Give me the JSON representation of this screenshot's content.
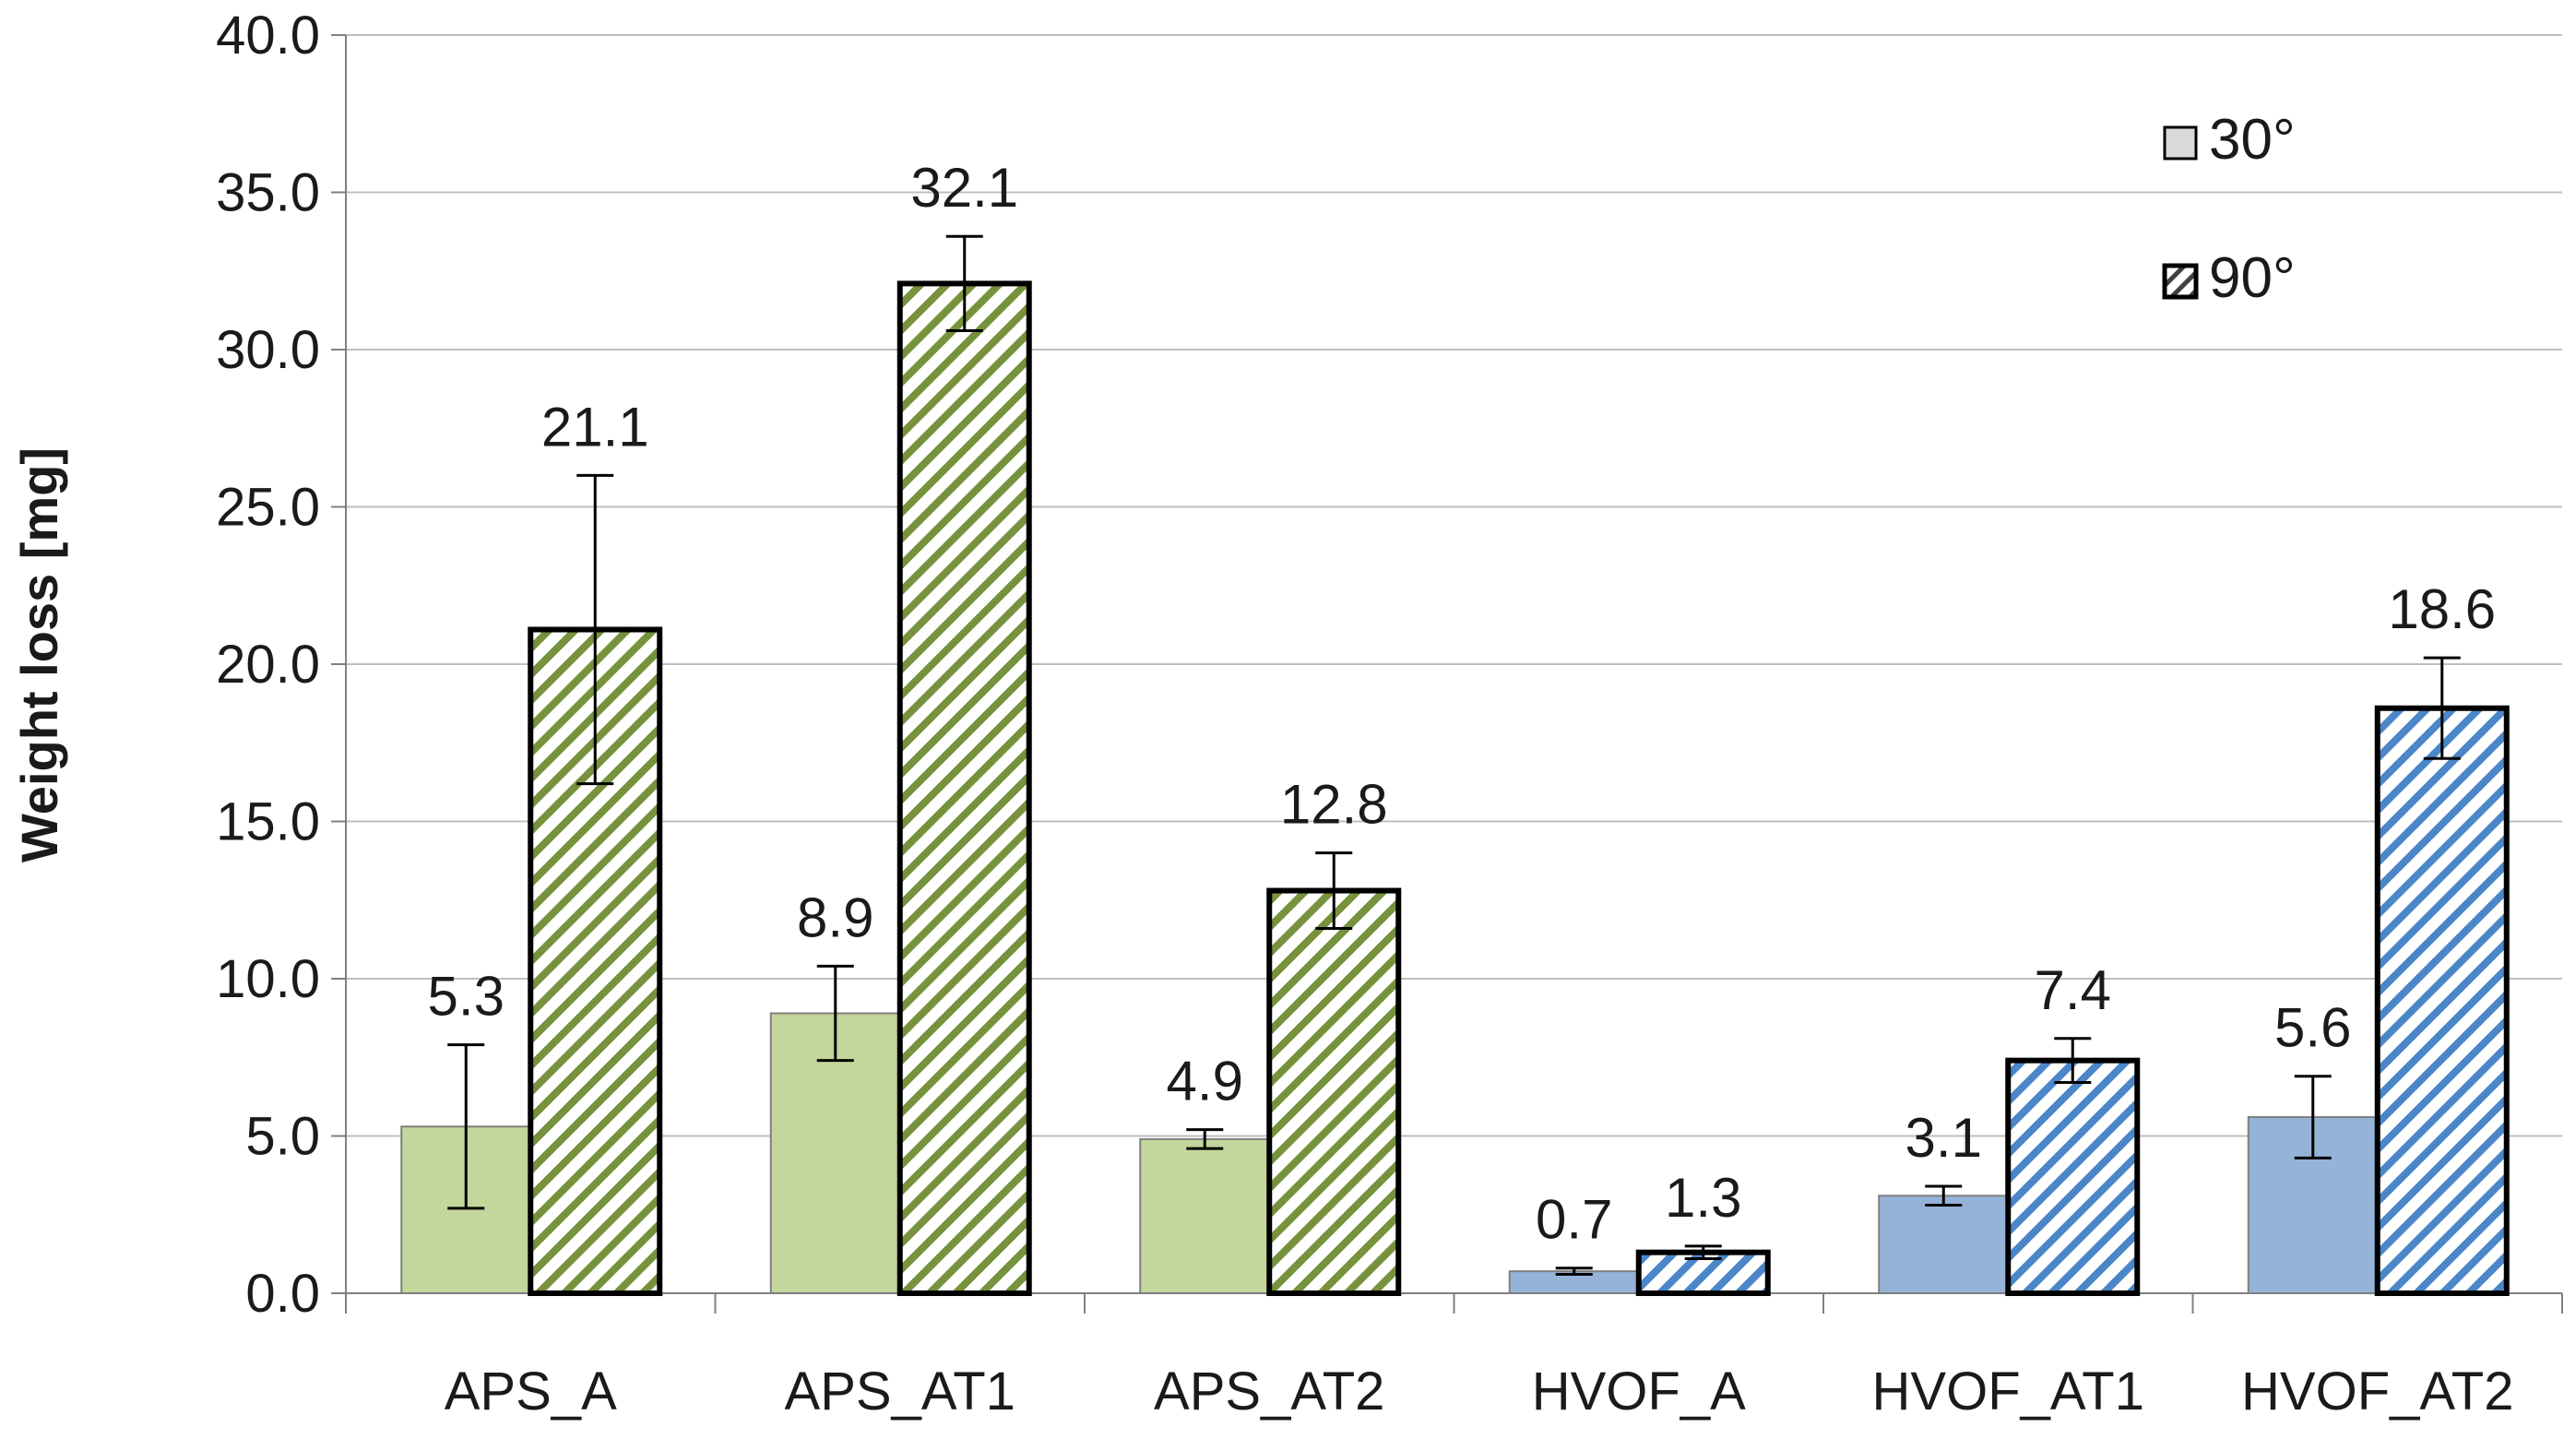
{
  "chart_data": {
    "type": "bar",
    "title": "",
    "xlabel": "",
    "ylabel": "Weight loss [mg]",
    "ylim": [
      0,
      40
    ],
    "ytick_step": 5,
    "ytick_labels": [
      "0.0",
      "5.0",
      "10.0",
      "15.0",
      "20.0",
      "25.0",
      "30.0",
      "35.0",
      "40.0"
    ],
    "grid": true,
    "legend_position": "top-right",
    "categories": [
      "APS_A",
      "APS_AT1",
      "APS_AT2",
      "HVOF_A",
      "HVOF_AT1",
      "HVOF_AT2"
    ],
    "category_colors": [
      "#c3d69b",
      "#c3d69b",
      "#c3d69b",
      "#95b3d7",
      "#95b3d7",
      "#95b3d7"
    ],
    "category_hatch_colors": [
      "#76923c",
      "#76923c",
      "#76923c",
      "#4a86c8",
      "#4a86c8",
      "#4a86c8"
    ],
    "series": [
      {
        "name": "30°",
        "pattern": "solid",
        "values": [
          5.3,
          8.9,
          4.9,
          0.7,
          3.1,
          5.6
        ],
        "labels": [
          "5.3",
          "8.9",
          "4.9",
          "0.7",
          "3.1",
          "5.6"
        ],
        "errors": [
          2.6,
          1.5,
          0.3,
          0.1,
          0.3,
          1.3
        ]
      },
      {
        "name": "90°",
        "pattern": "hatched",
        "values": [
          21.1,
          32.1,
          12.8,
          1.3,
          7.4,
          18.6
        ],
        "labels": [
          "21.1",
          "32.1",
          "12.8",
          "1.3",
          "7.4",
          "18.6"
        ],
        "errors": [
          4.9,
          1.5,
          1.2,
          0.2,
          0.7,
          1.6
        ]
      }
    ]
  },
  "colors": {
    "legend_solid_fill": "#d9d9d9",
    "grid": "#bfbfbf",
    "axis": "#808080",
    "bar_stroke": "#000000"
  }
}
